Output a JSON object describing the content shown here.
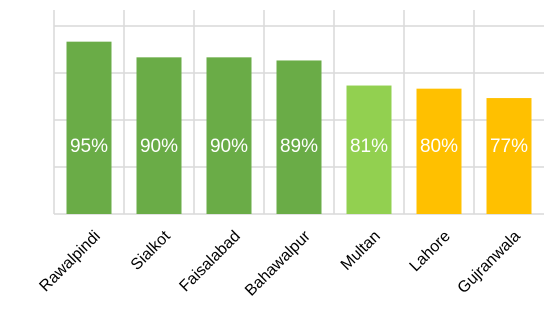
{
  "chart_data": {
    "type": "bar",
    "title": "",
    "xlabel": "",
    "ylabel": "",
    "categories": [
      "Rawalpindi",
      "Sialkot",
      "Faisalabad",
      "Bahawalpur",
      "Multan",
      "Lahore",
      "Gujranwala"
    ],
    "values": [
      95,
      90,
      90,
      89,
      81,
      80,
      77
    ],
    "value_labels": [
      "95%",
      "90%",
      "90%",
      "89%",
      "81%",
      "80%",
      "77%"
    ],
    "colors": [
      "#6aac47",
      "#6aac47",
      "#6aac47",
      "#6aac47",
      "#92d050",
      "#ffc000",
      "#ffc000"
    ],
    "ylim": [
      40,
      100
    ],
    "grid": true,
    "legend": "none"
  }
}
